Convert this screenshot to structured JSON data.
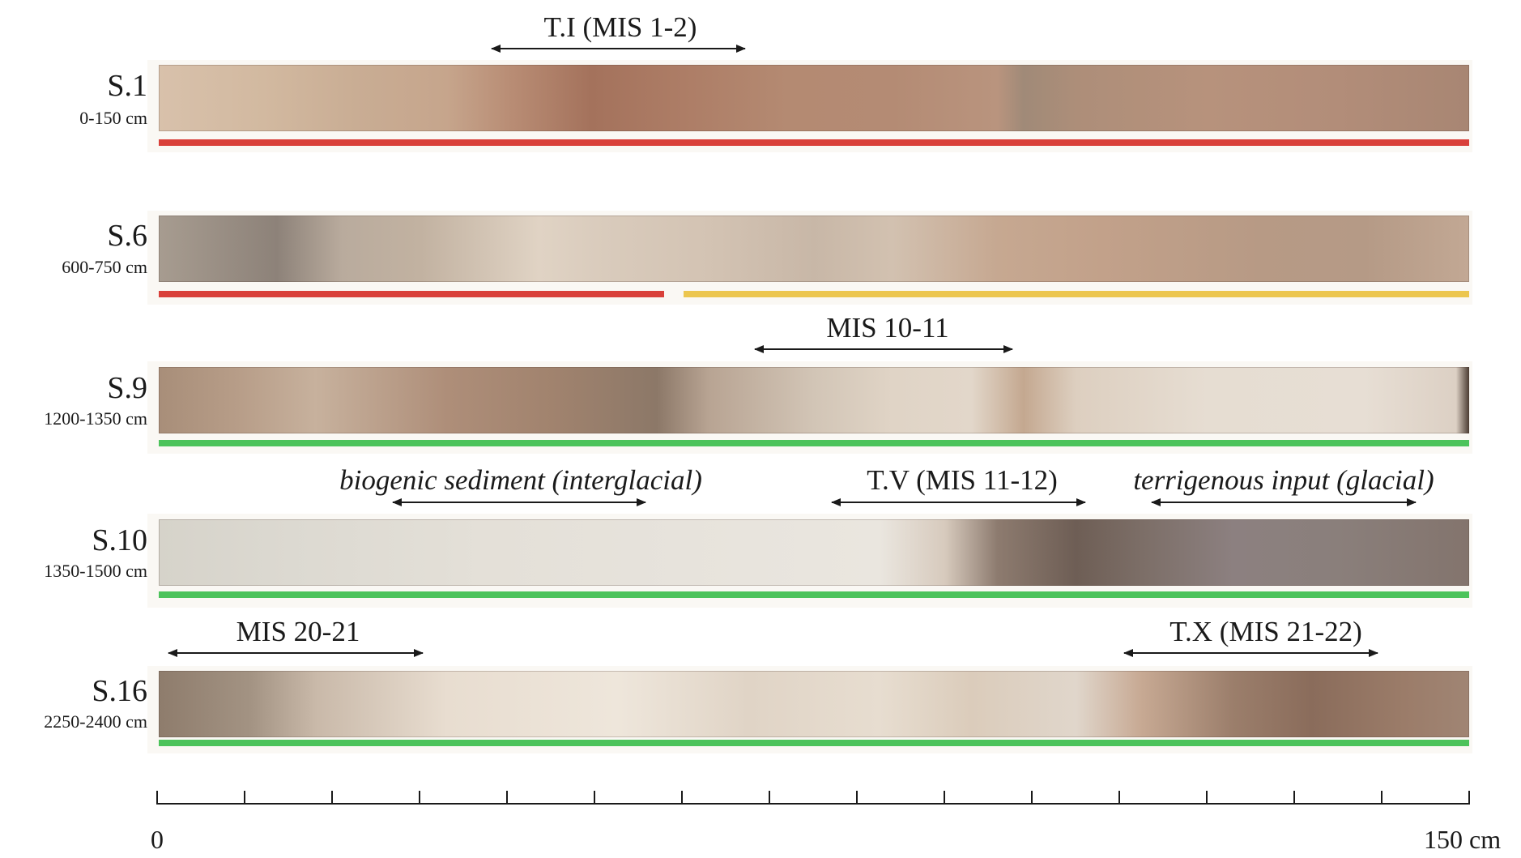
{
  "cores": [
    {
      "name": "S.1",
      "depth": "0-150 cm",
      "bars": [
        "red"
      ]
    },
    {
      "name": "S.6",
      "depth": "600-750 cm",
      "bars": [
        "red",
        "yellow"
      ]
    },
    {
      "name": "S.9",
      "depth": "1200-1350 cm",
      "bars": [
        "green"
      ]
    },
    {
      "name": "S.10",
      "depth": "1350-1500 cm",
      "bars": [
        "green"
      ]
    },
    {
      "name": "S.16",
      "depth": "2250-2400 cm",
      "bars": [
        "green"
      ]
    }
  ],
  "annotations": {
    "ti": "T.I (MIS 1-2)",
    "mis_10_11": "MIS 10-11",
    "biogenic": "biogenic sediment (interglacial)",
    "tv": "T.V (MIS 11-12)",
    "terrigenous": "terrigenous input (glacial)",
    "mis_20_21": "MIS 20-21",
    "tx": "T.X (MIS 21-22)"
  },
  "scale": {
    "start_label": "0",
    "end_label": "150 cm"
  },
  "colors": {
    "red": "#d9403a",
    "yellow": "#ecc64f",
    "green": "#4cc35b"
  }
}
